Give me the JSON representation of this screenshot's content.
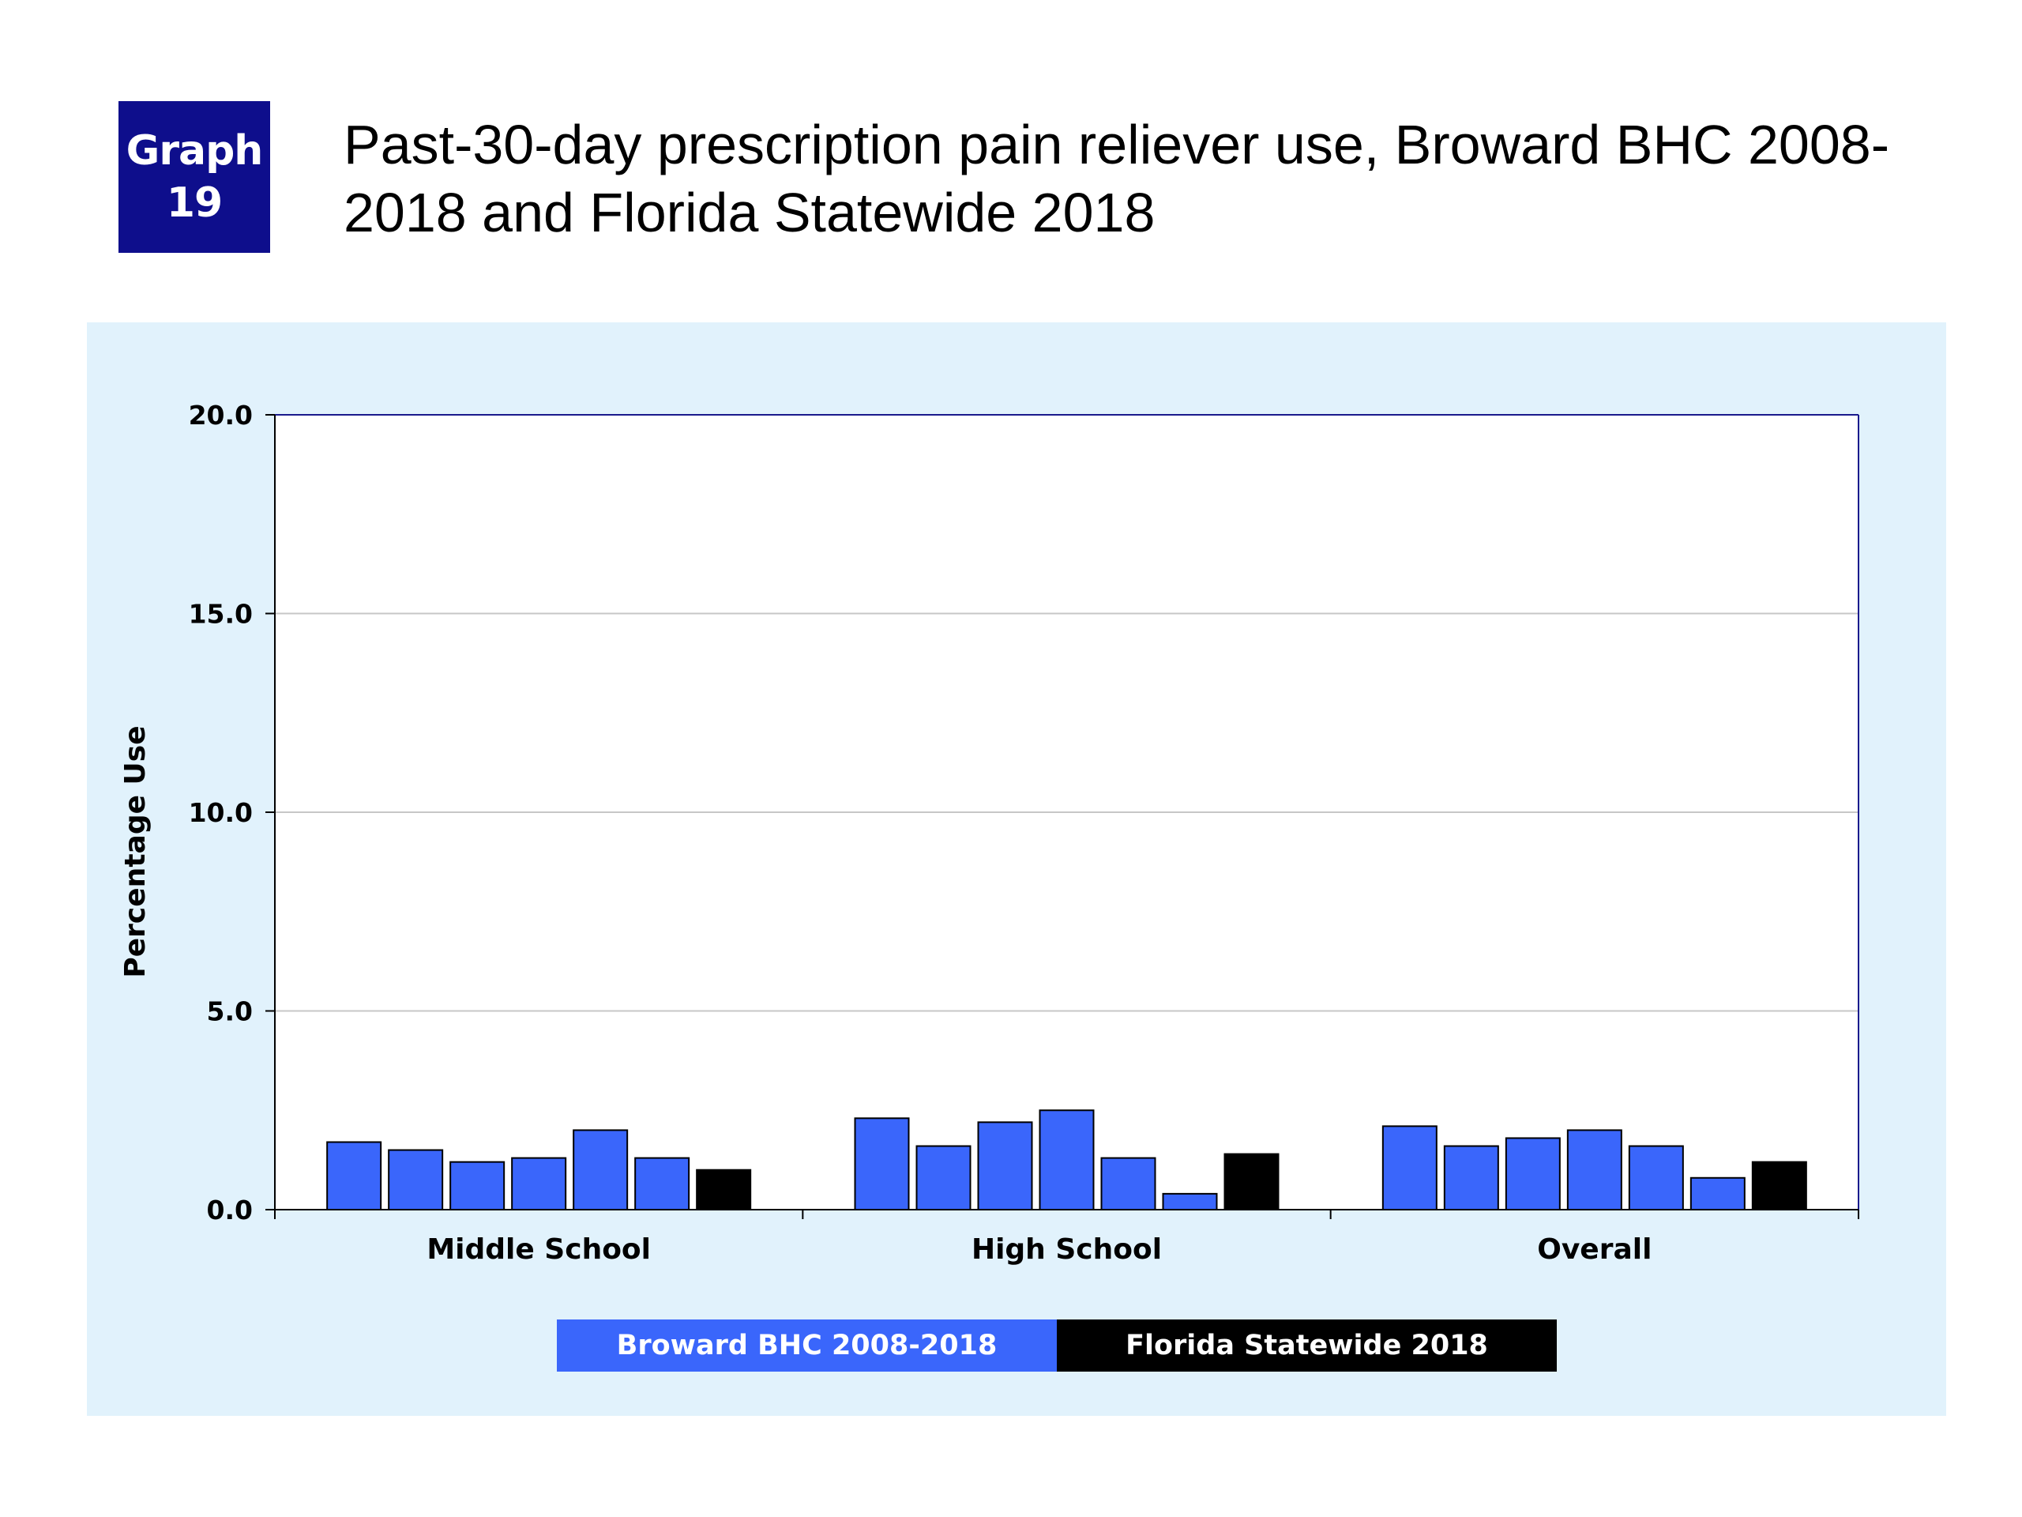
{
  "badge": {
    "line1": "Graph",
    "line2": "19"
  },
  "title": "Past-30-day prescription pain reliever use, Broward BHC 2008-2018 and Florida Statewide 2018",
  "colors": {
    "broward": "#3a66fb",
    "florida": "#000000",
    "panel": "#e1f2fc",
    "badge": "#0e0e8c",
    "axis": "#1a1a8c",
    "grid": "#c7c7c7"
  },
  "legend": [
    {
      "label": "Broward BHC 2008-2018",
      "color": "#3a66fb"
    },
    {
      "label": "Florida Statewide 2018",
      "color": "#000000"
    }
  ],
  "chart_data": {
    "type": "bar",
    "title": "Past-30-day prescription pain reliever use, Broward BHC 2008-2018 and Florida Statewide 2018",
    "xlabel": "",
    "ylabel": "Percentage Use",
    "ylim": [
      0,
      20
    ],
    "yticks": [
      "0.0",
      "5.0",
      "10.0",
      "15.0",
      "20.0"
    ],
    "grid": true,
    "categories": [
      "Middle School",
      "High School",
      "Overall"
    ],
    "series": [
      {
        "name": "Broward BHC 2008-2018",
        "color": "#3a66fb",
        "group_values": [
          [
            1.7,
            1.5,
            1.2,
            1.3,
            2.0,
            1.3
          ],
          [
            2.3,
            1.6,
            2.2,
            2.5,
            1.3,
            0.4
          ],
          [
            2.1,
            1.6,
            1.8,
            2.0,
            1.6,
            0.8
          ]
        ]
      },
      {
        "name": "Florida Statewide 2018",
        "color": "#000000",
        "values": [
          1.0,
          1.4,
          1.2
        ]
      }
    ]
  }
}
